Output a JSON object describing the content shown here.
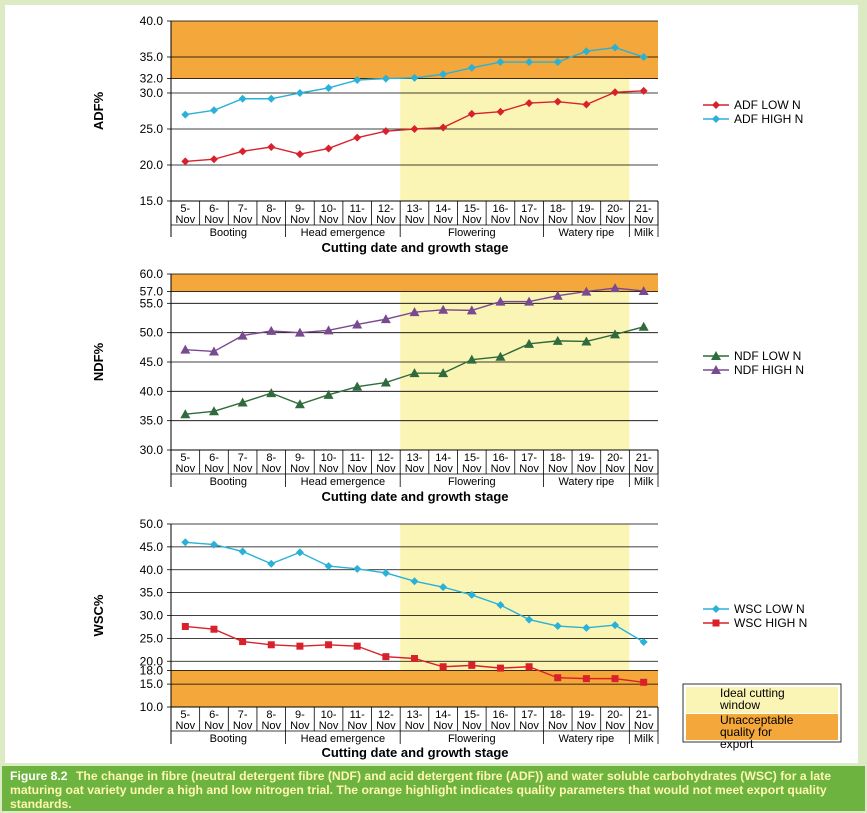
{
  "caption": {
    "label": "Figure 8.2",
    "text": "The change in fibre (neutral detergent fibre (NDF) and acid detergent fibre (ADF)) and water soluble carbohydrates (WSC) for a late maturing oat variety under a high and low nitrogen trial. The orange highlight indicates quality parameters that would not meet export quality standards."
  },
  "colors": {
    "ideal_window": "#fbf5b5",
    "unacceptable": "#f4a73a",
    "adf_low": "#d9212b",
    "adf_high": "#2ab1d8",
    "ndf_low": "#2f6b3c",
    "ndf_high": "#7a4a91",
    "wsc_low": "#2ab1d8",
    "wsc_high": "#d9212b"
  },
  "legend_box": {
    "ideal": "Ideal cutting window",
    "unacceptable": "Unacceptable quality for export"
  },
  "chart_data": [
    {
      "type": "line",
      "ylabel": "ADF%",
      "xlabel": "Cutting date and growth stage",
      "categories": [
        "5-Nov",
        "6-Nov",
        "7-Nov",
        "8-Nov",
        "9-Nov",
        "10-Nov",
        "11-Nov",
        "12-Nov",
        "13-Nov",
        "14-Nov",
        "15-Nov",
        "16-Nov",
        "17-Nov",
        "18-Nov",
        "19-Nov",
        "20-Nov",
        "21-Nov"
      ],
      "stages": [
        {
          "name": "Booting",
          "from": 0,
          "to": 3
        },
        {
          "name": "Head emergence",
          "from": 4,
          "to": 7
        },
        {
          "name": "Flowering",
          "from": 8,
          "to": 12
        },
        {
          "name": "Watery ripe",
          "from": 13,
          "to": 15
        },
        {
          "name": "Milk",
          "from": 16,
          "to": 16
        }
      ],
      "ylim": [
        15,
        40
      ],
      "yticks": [
        "15.0",
        "20.0",
        "25.0",
        "30.0",
        "32.0",
        "35.0",
        "40.0"
      ],
      "ytick_values": [
        15,
        20,
        25,
        30,
        32,
        35,
        40
      ],
      "unacceptable_band": [
        32,
        40
      ],
      "ideal_window": [
        8,
        15
      ],
      "legend_position": "right",
      "series": [
        {
          "name": "ADF LOW N",
          "marker": "diamond",
          "color_key": "adf_low",
          "values": [
            20.5,
            20.8,
            21.9,
            22.5,
            21.5,
            22.3,
            23.8,
            24.7,
            25.0,
            25.2,
            27.1,
            27.4,
            28.6,
            28.8,
            28.4,
            30.1,
            30.3
          ]
        },
        {
          "name": "ADF HIGH N",
          "marker": "diamond",
          "color_key": "adf_high",
          "values": [
            27.0,
            27.6,
            29.2,
            29.2,
            30.0,
            30.7,
            31.8,
            32.0,
            32.1,
            32.6,
            33.5,
            34.3,
            34.3,
            34.3,
            35.8,
            36.3,
            35.0
          ]
        }
      ]
    },
    {
      "type": "line",
      "ylabel": "NDF%",
      "xlabel": "Cutting date and growth stage",
      "categories": [
        "5-Nov",
        "6-Nov",
        "7-Nov",
        "8-Nov",
        "9-Nov",
        "10-Nov",
        "11-Nov",
        "12-Nov",
        "13-Nov",
        "14-Nov",
        "15-Nov",
        "16-Nov",
        "17-Nov",
        "18-Nov",
        "19-Nov",
        "20-Nov",
        "21-Nov"
      ],
      "stages": [
        {
          "name": "Booting",
          "from": 0,
          "to": 3
        },
        {
          "name": "Head emergence",
          "from": 4,
          "to": 7
        },
        {
          "name": "Flowering",
          "from": 8,
          "to": 12
        },
        {
          "name": "Watery ripe",
          "from": 13,
          "to": 15
        },
        {
          "name": "Milk",
          "from": 16,
          "to": 16
        }
      ],
      "ylim": [
        30,
        60
      ],
      "yticks": [
        "30.0",
        "35.0",
        "40.0",
        "45.0",
        "50.0",
        "55.0",
        "57.0",
        "60.0"
      ],
      "ytick_values": [
        30,
        35,
        40,
        45,
        50,
        55,
        57,
        60
      ],
      "unacceptable_band": [
        57,
        60
      ],
      "ideal_window": [
        8,
        15
      ],
      "legend_position": "right",
      "series": [
        {
          "name": "NDF LOW N",
          "marker": "triangle",
          "color_key": "ndf_low",
          "values": [
            36.1,
            36.6,
            38.1,
            39.7,
            37.8,
            39.4,
            40.8,
            41.5,
            43.1,
            43.1,
            45.4,
            45.9,
            48.1,
            48.6,
            48.5,
            49.7,
            51.0
          ]
        },
        {
          "name": "NDF HIGH N",
          "marker": "triangle",
          "color_key": "ndf_high",
          "values": [
            47.1,
            46.8,
            49.5,
            50.3,
            50.0,
            50.4,
            51.4,
            52.3,
            53.5,
            53.9,
            53.8,
            55.3,
            55.3,
            56.3,
            57.0,
            57.6,
            57.1
          ]
        }
      ]
    },
    {
      "type": "line",
      "ylabel": "WSC%",
      "xlabel": "Cutting date and growth stage",
      "categories": [
        "5-Nov",
        "6-Nov",
        "7-Nov",
        "8-Nov",
        "9-Nov",
        "10-Nov",
        "11-Nov",
        "12-Nov",
        "13-Nov",
        "14-Nov",
        "15-Nov",
        "16-Nov",
        "17-Nov",
        "18-Nov",
        "19-Nov",
        "20-Nov",
        "21-Nov"
      ],
      "stages": [
        {
          "name": "Booting",
          "from": 0,
          "to": 3
        },
        {
          "name": "Head emergence",
          "from": 4,
          "to": 7
        },
        {
          "name": "Flowering",
          "from": 8,
          "to": 12
        },
        {
          "name": "Watery ripe",
          "from": 13,
          "to": 15
        },
        {
          "name": "Milk",
          "from": 16,
          "to": 16
        }
      ],
      "ylim": [
        10,
        50
      ],
      "yticks": [
        "10.0",
        "15.0",
        "18.0",
        "20.0",
        "25.0",
        "30.0",
        "35.0",
        "40.0",
        "45.0",
        "50.0"
      ],
      "ytick_values": [
        10,
        15,
        18,
        20,
        25,
        30,
        35,
        40,
        45,
        50
      ],
      "unacceptable_band": [
        10,
        18
      ],
      "ideal_window": [
        8,
        15
      ],
      "legend_position": "right",
      "series": [
        {
          "name": "WSC LOW N",
          "marker": "diamond",
          "color_key": "wsc_low",
          "values": [
            46.0,
            45.5,
            44.0,
            41.3,
            43.8,
            40.8,
            40.2,
            39.3,
            37.5,
            36.2,
            34.5,
            32.3,
            29.1,
            27.7,
            27.3,
            27.9,
            24.2
          ]
        },
        {
          "name": "WSC HIGH N",
          "marker": "square",
          "color_key": "wsc_high",
          "values": [
            27.6,
            27.0,
            24.3,
            23.6,
            23.3,
            23.6,
            23.3,
            21.0,
            20.6,
            18.8,
            19.1,
            18.5,
            18.8,
            16.4,
            16.2,
            16.2,
            15.4
          ]
        }
      ]
    }
  ]
}
